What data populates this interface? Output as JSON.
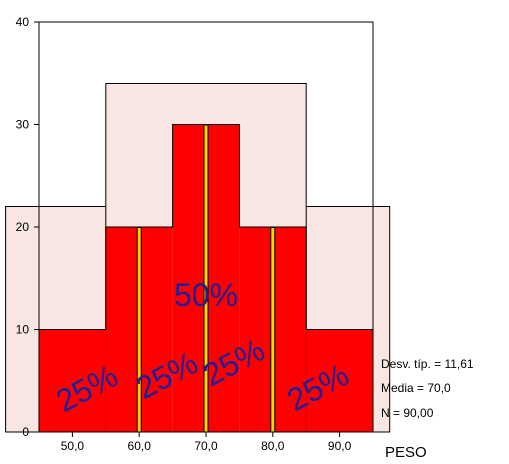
{
  "chart_data": {
    "type": "bar",
    "xlabel": "PESO",
    "x_ticks": [
      "50,0",
      "60,0",
      "70,0",
      "80,0",
      "90,0"
    ],
    "y_ticks": [
      "0",
      "10",
      "20",
      "30",
      "40"
    ],
    "xlim": [
      45,
      95
    ],
    "ylim": [
      0,
      40
    ],
    "bins": [
      {
        "x0": 45,
        "x1": 55,
        "value": 10
      },
      {
        "x0": 55,
        "x1": 65,
        "value": 20
      },
      {
        "x0": 65,
        "x1": 75,
        "value": 30
      },
      {
        "x0": 75,
        "x1": 85,
        "value": 20
      },
      {
        "x0": 85,
        "x1": 95,
        "value": 10
      }
    ],
    "divider_lines_x": [
      60,
      70,
      80
    ],
    "bar_color": "#ff0000",
    "divider_color": "#ffd200",
    "shade_color": "#f7e6e1",
    "shade_regions": [
      {
        "x0": 40,
        "x1": 97.5,
        "y": 22
      },
      {
        "x0": 55,
        "x1": 85,
        "y": 34
      }
    ],
    "outer_frame": {
      "x0": 45,
      "x1": 95,
      "y": 40
    },
    "percent_labels": [
      "25%",
      "25%",
      "25%",
      "25%",
      "50%"
    ],
    "stats": [
      "Desv. típ. = 11,61",
      "Media = 70,0",
      "N = 90,00"
    ]
  }
}
